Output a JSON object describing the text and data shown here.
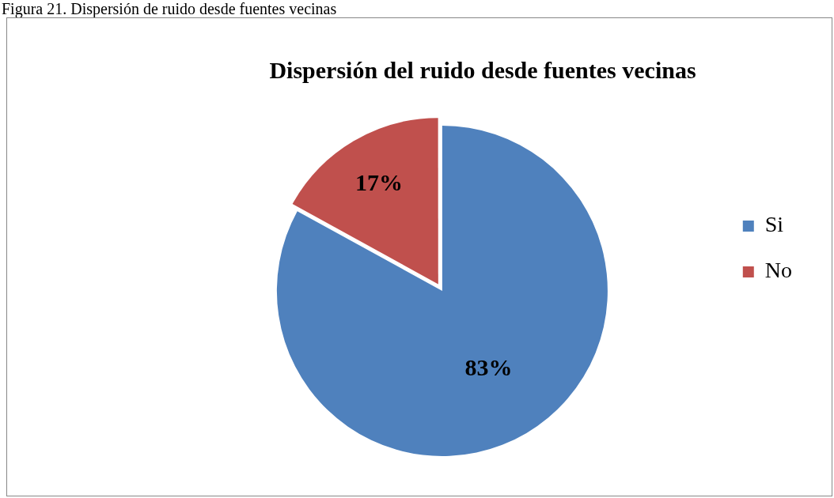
{
  "chart_data": {
    "type": "pie",
    "title": "Dispersión del ruido desde fuentes vecinas",
    "annotations": [
      "Figura 21. Dispersión de ruido desde fuentes vecinas"
    ],
    "categories": [
      "Si",
      "No"
    ],
    "values": [
      83,
      17
    ],
    "colors": [
      "#4f81bd",
      "#c0504d"
    ],
    "value_labels": [
      "83%",
      "17%"
    ],
    "legend": "right"
  }
}
